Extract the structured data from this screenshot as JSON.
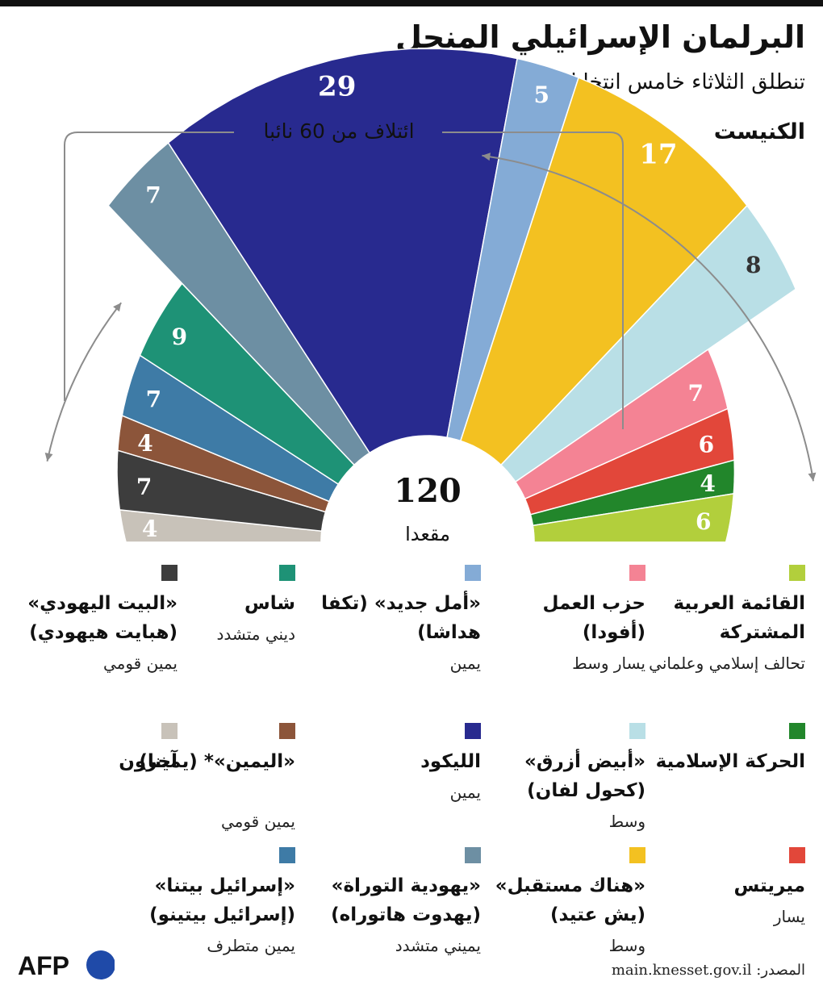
{
  "title": "البرلمان الإسرائيلي المنحل",
  "subtitle": "تنطلق الثلاثاء خامس انتخابات خلال أقل من أربع سنوات",
  "knesset_label": "الكنيست",
  "coalition_label": "ائتلاف من 60 نائبا",
  "total_value": "120",
  "total_label": "مقعدا",
  "source": "المصدر: main.knesset.gov.il",
  "logo": "AFP",
  "chart_data": {
    "type": "pie",
    "variant": "parliament-half-donut",
    "total_seats": 120,
    "series": [
      {
        "name": "آخرون",
        "seats": 4,
        "color": "#c8c2b9"
      },
      {
        "name": "البيت اليهودي",
        "seats": 7,
        "color": "#3d3d3d"
      },
      {
        "name": "اليمين",
        "seats": 4,
        "color": "#8c553a"
      },
      {
        "name": "إسرائيل بيتنا",
        "seats": 7,
        "color": "#3e7ba6"
      },
      {
        "name": "شاس",
        "seats": 9,
        "color": "#1e9276"
      },
      {
        "name": "يهودية التوراة",
        "seats": 7,
        "color": "#6d8fa3"
      },
      {
        "name": "الليكود",
        "seats": 29,
        "color": "#282a8f"
      },
      {
        "name": "أمل جديد",
        "seats": 5,
        "color": "#84abd6"
      },
      {
        "name": "هناك مستقبل",
        "seats": 17,
        "color": "#f3c121"
      },
      {
        "name": "أبيض أزرق",
        "seats": 8,
        "color": "#b9dfe6"
      },
      {
        "name": "حزب العمل",
        "seats": 7,
        "color": "#f48394"
      },
      {
        "name": "ميريتس",
        "seats": 6,
        "color": "#e2473a"
      },
      {
        "name": "الحركة الإسلامية",
        "seats": 4,
        "color": "#22862b"
      },
      {
        "name": "القائمة العربية المشتركة",
        "seats": 6,
        "color": "#b2cf3c"
      }
    ]
  },
  "legend": [
    {
      "name": "القائمة العربية المشتركة",
      "desc": "تحالف إسلامي وعلماني",
      "color": "#b2cf3c"
    },
    {
      "name": "حزب العمل (أفودا)",
      "desc": "يسار وسط",
      "color": "#f48394"
    },
    {
      "name": "«أمل جديد» (تكفا هداشا)",
      "desc": "يمين",
      "color": "#84abd6"
    },
    {
      "name": "شاس",
      "desc": "ديني متشدد",
      "color": "#1e9276"
    },
    {
      "name": "«البيت اليهودي» (هبايت هيهودي)",
      "desc": "يمين قومي",
      "color": "#3d3d3d"
    },
    {
      "name": "الحركة الإسلامية",
      "desc": "",
      "color": "#22862b"
    },
    {
      "name": "«أبيض أزرق» (كحول لفان)",
      "desc": "وسط",
      "color": "#b9dfe6"
    },
    {
      "name": "الليكود",
      "desc": "يمين",
      "color": "#282a8f"
    },
    {
      "name": "«اليمين»* (يمينا)",
      "desc": "يمين قومي",
      "color": "#8c553a"
    },
    {
      "name": "آخرون",
      "desc": "",
      "color": "#c8c2b9"
    },
    {
      "name": "ميريتس",
      "desc": "يسار",
      "color": "#e2473a"
    },
    {
      "name": "«هناك مستقبل» (يش عتيد)",
      "desc": "وسط",
      "color": "#f3c121"
    },
    {
      "name": "«يهودية التوراة» (يهدوت هاتوراه)",
      "desc": "يميني متشدد",
      "color": "#6d8fa3"
    },
    {
      "name": "«إسرائيل بيتنا» (إسرائيل بيتينو)",
      "desc": "يمين متطرف",
      "color": "#3e7ba6"
    }
  ]
}
